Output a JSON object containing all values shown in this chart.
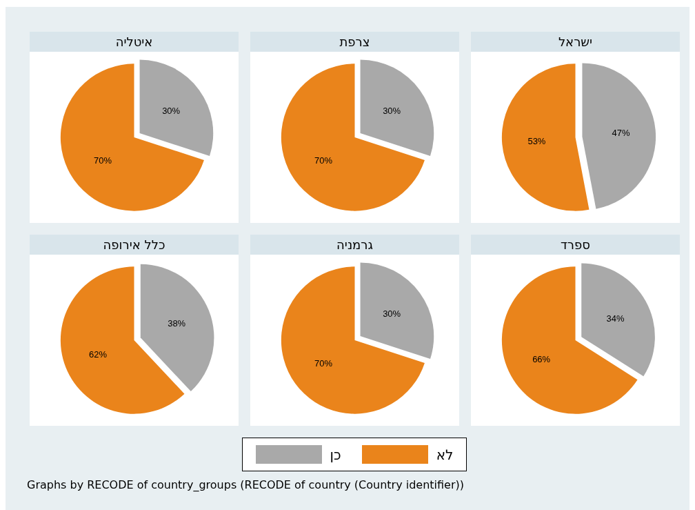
{
  "chart_data": [
    {
      "type": "pie",
      "title": "איטליה",
      "categories": [
        "כן",
        "לא"
      ],
      "values": [
        30,
        70
      ],
      "colors": [
        "#a9a9a9",
        "#ea841b"
      ],
      "value_labels": [
        "30%",
        "70%"
      ],
      "legend": "bottom",
      "annotations": [
        "Graphs by RECODE of country_groups (RECODE of country (Country identifier))"
      ]
    },
    {
      "type": "pie",
      "title": "צרפת",
      "values": [
        30,
        70
      ],
      "colors": [
        "#a9a9a9",
        "#ea841b"
      ],
      "value_labels": [
        "30%",
        "70%"
      ]
    },
    {
      "type": "pie",
      "title": "ישראל",
      "values": [
        47,
        53
      ],
      "colors": [
        "#a9a9a9",
        "#ea841b"
      ],
      "value_labels": [
        "47%",
        "53%"
      ]
    },
    {
      "type": "pie",
      "title": "כלל אירופה",
      "values": [
        38,
        62
      ],
      "colors": [
        "#a9a9a9",
        "#ea841b"
      ],
      "value_labels": [
        "38%",
        "62%"
      ]
    },
    {
      "type": "pie",
      "title": "גרמניה",
      "values": [
        30,
        70
      ],
      "colors": [
        "#a9a9a9",
        "#ea841b"
      ],
      "value_labels": [
        "30%",
        "70%"
      ]
    },
    {
      "type": "pie",
      "title": "ספרד",
      "values": [
        34,
        66
      ],
      "colors": [
        "#a9a9a9",
        "#ea841b"
      ],
      "value_labels": [
        "34%",
        "66%"
      ]
    }
  ]
}
